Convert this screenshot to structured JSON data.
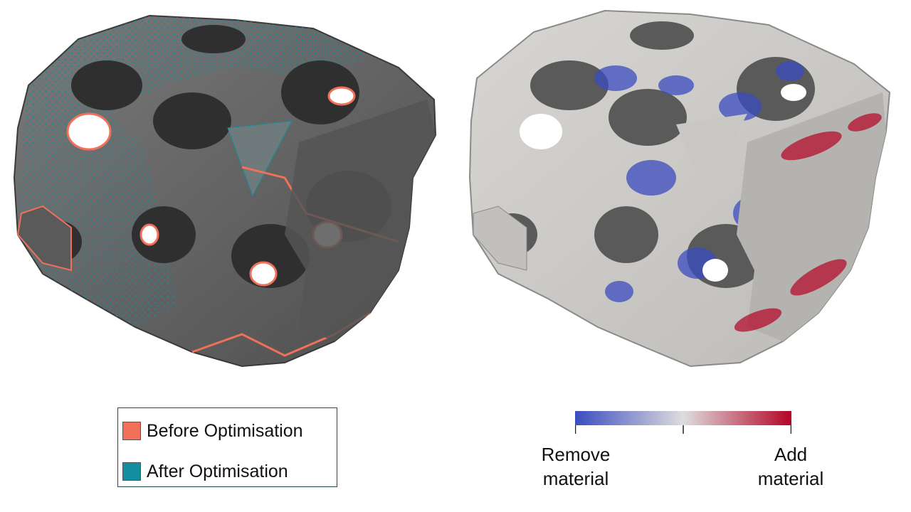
{
  "legend": {
    "items": [
      {
        "label": "Before Optimisation",
        "color": "#f0705a"
      },
      {
        "label": "After Optimisation",
        "color": "#138e9e"
      }
    ]
  },
  "colorbar": {
    "left_label": "Remove material",
    "right_label": "Add material",
    "left_line1": "Remove",
    "left_line2": "material",
    "right_line1": "Add",
    "right_line2": "material",
    "colors": [
      "#3b4cc0",
      "#dddddd",
      "#b40426"
    ]
  }
}
